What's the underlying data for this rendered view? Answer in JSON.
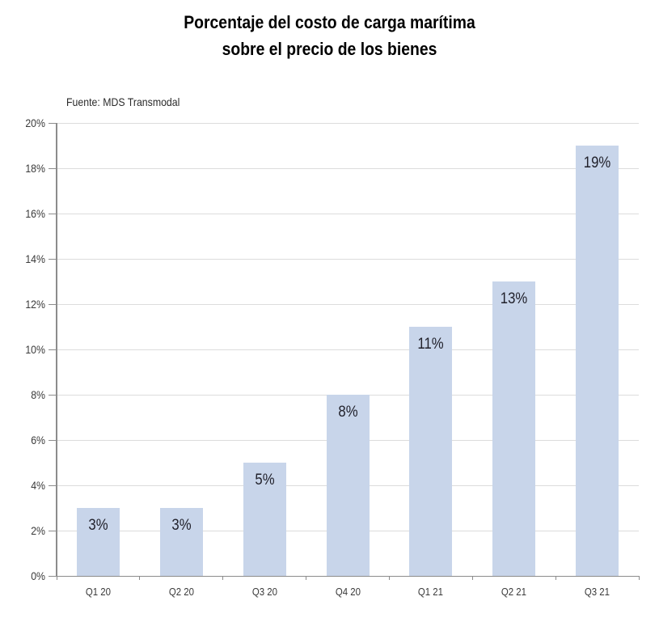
{
  "title": {
    "line1": "Porcentaje del costo de carga marítima",
    "line2": "sobre el precio de los bienes"
  },
  "source": "Fuente: MDS Transmodal",
  "chart_data": {
    "type": "bar",
    "title": "Porcentaje del costo de carga marítima sobre el precio de los bienes",
    "source": "Fuente: MDS Transmodal",
    "categories": [
      "Q1 20",
      "Q2 20",
      "Q3 20",
      "Q4 20",
      "Q1 21",
      "Q2 21",
      "Q3 21"
    ],
    "values": [
      3,
      3,
      5,
      8,
      11,
      13,
      19
    ],
    "bar_labels": [
      "3%",
      "3%",
      "5%",
      "8%",
      "11%",
      "13%",
      "19%"
    ],
    "xlabel": "",
    "ylabel": "",
    "ylim": [
      0,
      20
    ],
    "ytick_step": 2,
    "ytick_labels": [
      "0%",
      "2%",
      "4%",
      "6%",
      "8%",
      "10%",
      "12%",
      "14%",
      "16%",
      "18%",
      "20%"
    ],
    "grid": true,
    "legend_position": "none",
    "colors": {
      "bar_fill": "#c8d5ea",
      "gridline": "#dcdcdc",
      "axis_line": "#8c8c8c",
      "tick_label": "#3a3a3a",
      "bar_label": "#21212b",
      "title_text": "#000000"
    }
  }
}
